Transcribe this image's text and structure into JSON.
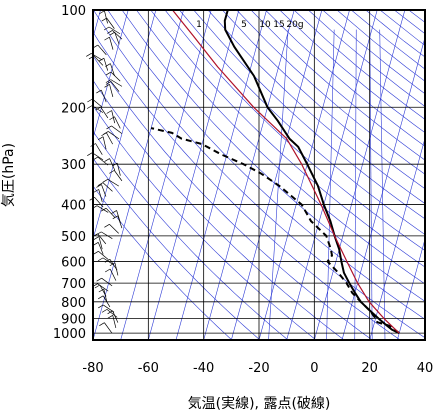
{
  "chart_data": {
    "type": "line",
    "xlabel": "気温(実線), 露点(破線)",
    "ylabel": "気圧(hPa)",
    "xlim": [
      -80,
      40
    ],
    "ylim": [
      1050,
      100
    ],
    "y_scale": "log",
    "x_ticks": [
      "-80",
      "-60",
      "-40",
      "-20",
      "0",
      "20",
      "40"
    ],
    "y_ticks": [
      "100",
      "200",
      "300",
      "400",
      "500",
      "600",
      "700",
      "800",
      "900",
      "1000"
    ],
    "mixing_ratio_labels": [
      "1",
      "5",
      "10",
      "15",
      "20g"
    ],
    "colors": {
      "grid": "#000000",
      "guide": "#2e3bd6",
      "temperature": "#000000",
      "dewpoint": "#000000",
      "parcel": "#b0122a"
    },
    "series": [
      {
        "role": "temperature",
        "style": "solid",
        "points": [
          [
            1000,
            30
          ],
          [
            975,
            27
          ],
          [
            950,
            25
          ],
          [
            925,
            23
          ],
          [
            900,
            21
          ],
          [
            850,
            17
          ],
          [
            800,
            13
          ],
          [
            750,
            10
          ],
          [
            700,
            7
          ],
          [
            650,
            4
          ],
          [
            600,
            2
          ],
          [
            550,
            0
          ],
          [
            500,
            -3
          ],
          [
            450,
            -6
          ],
          [
            400,
            -10
          ],
          [
            350,
            -14
          ],
          [
            300,
            -20
          ],
          [
            265,
            -25
          ],
          [
            250,
            -29
          ],
          [
            220,
            -35
          ],
          [
            200,
            -40
          ],
          [
            160,
            -48
          ],
          [
            130,
            -58
          ],
          [
            115,
            -63
          ],
          [
            108,
            -64
          ],
          [
            100,
            -64
          ]
        ]
      },
      {
        "role": "dewpoint",
        "style": "dashed",
        "points": [
          [
            1000,
            30
          ],
          [
            975,
            28
          ],
          [
            950,
            26
          ],
          [
            925,
            21
          ],
          [
            900,
            20
          ],
          [
            850,
            17
          ],
          [
            800,
            13
          ],
          [
            750,
            9
          ],
          [
            700,
            6
          ],
          [
            650,
            2
          ],
          [
            600,
            -3
          ],
          [
            575,
            -2
          ],
          [
            550,
            -3
          ],
          [
            500,
            -6
          ],
          [
            450,
            -13
          ],
          [
            400,
            -18
          ],
          [
            350,
            -28
          ],
          [
            320,
            -36
          ],
          [
            300,
            -43
          ],
          [
            280,
            -52
          ],
          [
            260,
            -60
          ],
          [
            250,
            -68
          ],
          [
            240,
            -72
          ],
          [
            232,
            -80
          ]
        ]
      },
      {
        "role": "parcel",
        "style": "solid",
        "points": [
          [
            1000,
            30
          ],
          [
            900,
            23
          ],
          [
            800,
            16
          ],
          [
            700,
            10
          ],
          [
            600,
            4
          ],
          [
            500,
            -3
          ],
          [
            400,
            -11
          ],
          [
            300,
            -22
          ],
          [
            250,
            -30
          ],
          [
            200,
            -45
          ],
          [
            150,
            -62
          ],
          [
            120,
            -74
          ],
          [
            100,
            -84
          ]
        ]
      }
    ],
    "wind_staff_count": 60
  }
}
